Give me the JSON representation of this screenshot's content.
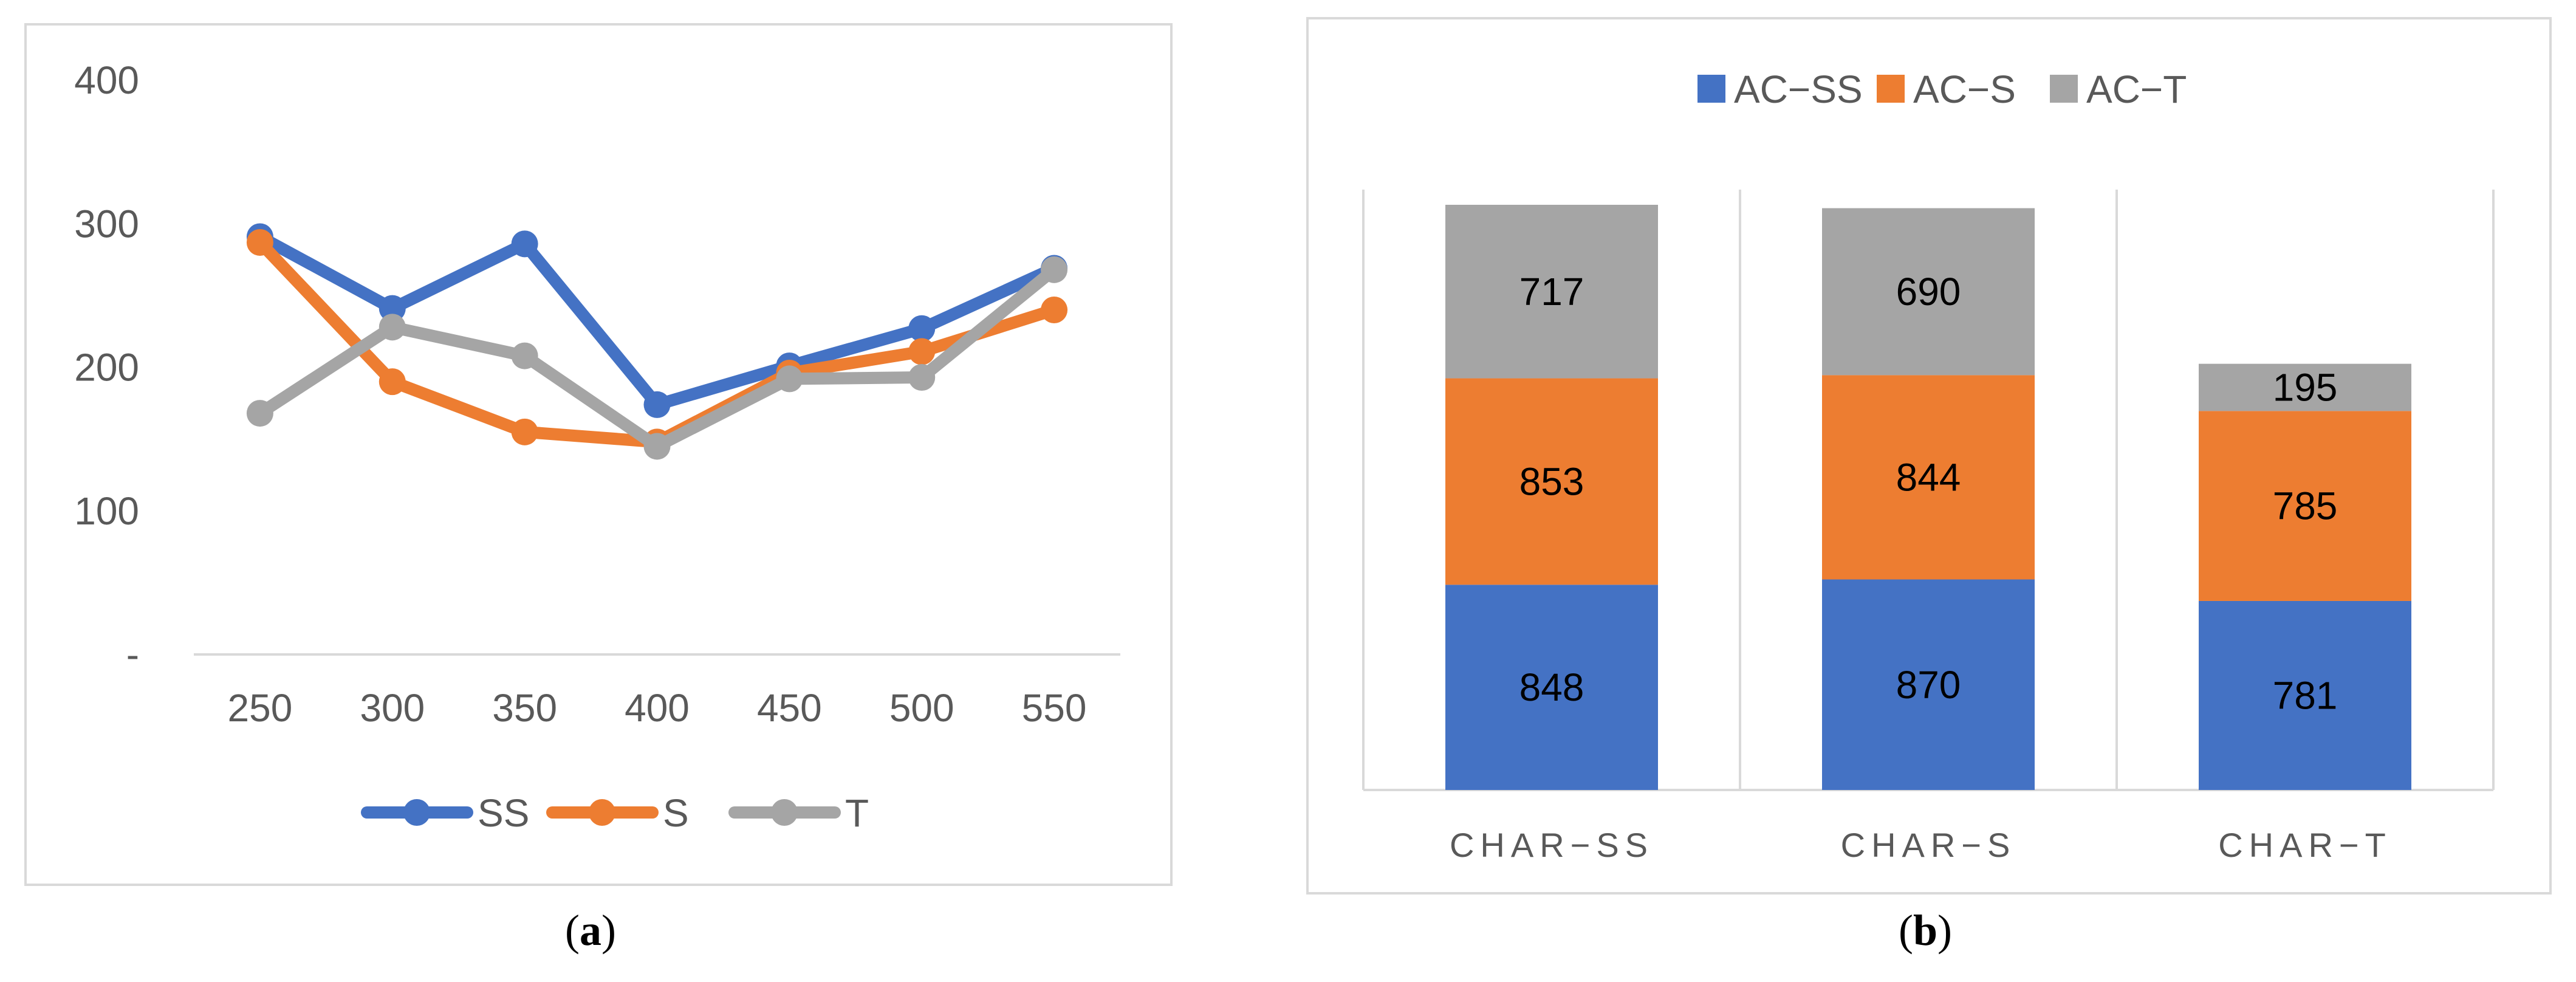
{
  "chart_data": [
    {
      "type": "line",
      "caption": "a",
      "title": "",
      "xlabel": "",
      "ylabel": "",
      "x": [
        250,
        300,
        350,
        400,
        450,
        500,
        550
      ],
      "ylim": [
        0,
        400
      ],
      "y_ticks": [
        "-",
        "100",
        "200",
        "300",
        "400"
      ],
      "grid": false,
      "legend_position": "bottom",
      "series": [
        {
          "name": "SS",
          "color": "#4472C4",
          "values": [
            291,
            241,
            286,
            174,
            201,
            227,
            269
          ]
        },
        {
          "name": "S",
          "color": "#ED7D31",
          "values": [
            287,
            190,
            155,
            148,
            196,
            211,
            240
          ]
        },
        {
          "name": "T",
          "color": "#A5A5A5",
          "values": [
            168,
            228,
            208,
            145,
            192,
            193,
            268
          ]
        }
      ]
    },
    {
      "type": "bar",
      "stacked": true,
      "caption": "b",
      "title": "",
      "categories": [
        "CHAR−SS",
        "CHAR−S",
        "CHAR−T"
      ],
      "legend_position": "top",
      "grid": "vertical category separators",
      "series": [
        {
          "name": "AC−SS",
          "color": "#4472C4",
          "values": [
            848,
            870,
            781
          ]
        },
        {
          "name": "AC−S",
          "color": "#ED7D31",
          "values": [
            853,
            844,
            785
          ]
        },
        {
          "name": "AC−T",
          "color": "#A5A5A5",
          "values": [
            717,
            690,
            195
          ]
        }
      ]
    }
  ]
}
